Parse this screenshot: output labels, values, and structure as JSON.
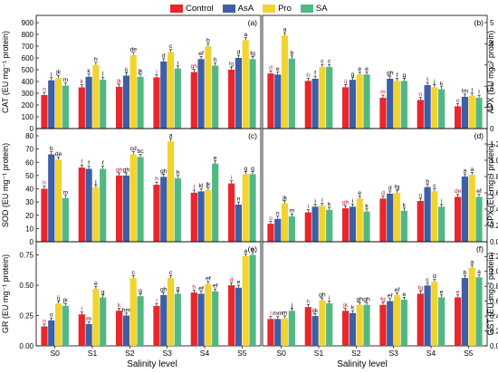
{
  "legend": [
    {
      "name": "Control",
      "color": "#e8262b"
    },
    {
      "name": "AsA",
      "color": "#3e5ea5"
    },
    {
      "name": "Pro",
      "color": "#f2d431"
    },
    {
      "name": "SA",
      "color": "#52b883"
    }
  ],
  "xlabel": "Salinity level",
  "chart_data": [
    {
      "type": "bar",
      "panel": "(a)",
      "ylabel": "CAT (EU mg⁻¹ protein)",
      "ylim": [
        0,
        900
      ],
      "yticks": [
        0,
        100,
        200,
        300,
        400,
        500,
        600,
        700,
        800,
        900
      ],
      "categories": [
        "S0",
        "S1",
        "S2",
        "S3",
        "S4",
        "S5"
      ],
      "series": [
        {
          "name": "Control",
          "values": [
            285,
            350,
            355,
            435,
            480,
            500
          ],
          "letters": [
            "n",
            "k",
            "jk",
            "i",
            "gh",
            "fg"
          ]
        },
        {
          "name": "AsA",
          "values": [
            410,
            440,
            450,
            570,
            590,
            600
          ],
          "letters": [
            "l",
            "k",
            "ij",
            "d",
            "ef",
            "d"
          ]
        },
        {
          "name": "Pro",
          "values": [
            430,
            540,
            625,
            650,
            700,
            750
          ],
          "letters": [
            "jk",
            "h",
            "de",
            "c",
            "b",
            "a"
          ]
        },
        {
          "name": "SA",
          "values": [
            365,
            415,
            440,
            510,
            535,
            590
          ],
          "letters": [
            "m",
            "l",
            "jk",
            "i",
            "h",
            "fg"
          ]
        }
      ]
    },
    {
      "type": "bar",
      "panel": "(b)",
      "ylabel": "APX (EU mg⁻¹ protein)",
      "ylim": [
        0,
        5
      ],
      "yticks": [
        0,
        1,
        2,
        3,
        4,
        5
      ],
      "categories": [
        "S0",
        "S1",
        "S2",
        "S3",
        "S4",
        "S5"
      ],
      "series": [
        {
          "name": "Control",
          "values": [
            2.6,
            2.25,
            1.95,
            1.45,
            1.35,
            1.05
          ],
          "letters": [
            "d",
            "h",
            "ij",
            "m",
            "n",
            "o"
          ]
        },
        {
          "name": "AsA",
          "values": [
            2.55,
            2.35,
            2.3,
            2.35,
            2.05,
            1.5
          ],
          "letters": [
            "e",
            "f",
            "g",
            "gh",
            "i",
            "lm"
          ]
        },
        {
          "name": "Pro",
          "values": [
            4.4,
            2.9,
            2.55,
            2.25,
            1.95,
            1.55
          ],
          "letters": [
            "a",
            "c",
            "e",
            "f",
            "j",
            "l"
          ]
        },
        {
          "name": "SA",
          "values": [
            3.3,
            2.9,
            2.55,
            2.25,
            1.85,
            1.45
          ],
          "letters": [
            "b",
            "c",
            "e",
            "g",
            "k",
            "l"
          ]
        }
      ]
    },
    {
      "type": "bar",
      "panel": "(c)",
      "ylabel": "SOD (EU mg⁻¹ protein)",
      "ylim": [
        0,
        80
      ],
      "yticks": [
        0,
        10,
        20,
        30,
        40,
        50,
        60,
        70,
        80
      ],
      "categories": [
        "S0",
        "S1",
        "S2",
        "S3",
        "S4",
        "S5"
      ],
      "series": [
        {
          "name": "Control",
          "values": [
            40,
            56,
            50,
            43,
            37,
            44
          ],
          "letters": [
            "h",
            "f",
            "gh",
            "h",
            "l",
            "i"
          ]
        },
        {
          "name": "AsA",
          "values": [
            66,
            55,
            50,
            49,
            38,
            28
          ],
          "letters": [
            "b",
            "f",
            "gh",
            "gh",
            "kl",
            "n"
          ]
        },
        {
          "name": "Pro",
          "values": [
            62,
            41,
            66,
            76,
            39,
            51
          ],
          "letters": [
            "de",
            "j",
            "cd",
            "a",
            "jk",
            "g"
          ]
        },
        {
          "name": "SA",
          "values": [
            33,
            55,
            64,
            48,
            59,
            51
          ],
          "letters": [
            "m",
            "f",
            "bc",
            "h",
            "e",
            "g"
          ]
        }
      ]
    },
    {
      "type": "bar",
      "panel": "(d)",
      "ylabel": "GPX (EU mg⁻¹ protein)",
      "ylim": [
        0,
        1.3
      ],
      "yticks": [
        0.0,
        0.2,
        0.4,
        0.6,
        0.8,
        1.0,
        1.2
      ],
      "categories": [
        "S0",
        "S1",
        "S2",
        "S3",
        "S4",
        "S5"
      ],
      "series": [
        {
          "name": "Control",
          "values": [
            0.22,
            0.36,
            0.41,
            0.53,
            0.5,
            0.55
          ],
          "letters": [
            "o",
            "l",
            "gh",
            "d",
            "g",
            "de"
          ]
        },
        {
          "name": "AsA",
          "values": [
            0.28,
            0.43,
            0.43,
            0.59,
            0.67,
            0.8
          ],
          "letters": [
            "n",
            "i",
            "i",
            "d",
            "b",
            "a"
          ]
        },
        {
          "name": "Pro",
          "values": [
            0.47,
            0.44,
            0.53,
            0.6,
            0.62,
            0.82
          ],
          "letters": [
            "jk",
            "i",
            "e",
            "fg",
            "c",
            "a"
          ]
        },
        {
          "name": "SA",
          "values": [
            0.31,
            0.39,
            0.37,
            0.38,
            0.43,
            0.55
          ],
          "letters": [
            "m",
            "k",
            "k",
            "k",
            "i",
            "ef"
          ]
        }
      ]
    },
    {
      "type": "bar",
      "panel": "(e)",
      "ylabel": "GR (EU mg⁻¹ protein)",
      "ylim": [
        0,
        0.8
      ],
      "yticks": [
        0.0,
        0.25,
        0.5,
        0.75
      ],
      "categories": [
        "S0",
        "S1",
        "S2",
        "S3",
        "S4",
        "S5"
      ],
      "series": [
        {
          "name": "Control",
          "values": [
            0.16,
            0.26,
            0.29,
            0.33,
            0.44,
            0.5
          ],
          "letters": [
            "n",
            "l",
            "k",
            "i",
            "h",
            "d"
          ]
        },
        {
          "name": "AsA",
          "values": [
            0.21,
            0.18,
            0.25,
            0.42,
            0.43,
            0.48
          ],
          "letters": [
            "o",
            "m",
            "hm",
            "gh",
            "ef",
            "e"
          ]
        },
        {
          "name": "Pro",
          "values": [
            0.35,
            0.47,
            0.56,
            0.56,
            0.51,
            0.74
          ],
          "letters": [
            "ij",
            "e",
            "c",
            "c",
            "ef",
            "a"
          ]
        },
        {
          "name": "SA",
          "values": [
            0.33,
            0.4,
            0.41,
            0.43,
            0.45,
            0.75
          ],
          "letters": [
            "jk",
            "g",
            "g",
            "g",
            "ef",
            "a"
          ]
        }
      ]
    },
    {
      "type": "bar",
      "panel": "(f)",
      "ylabel": "GST (EU mg⁻¹ protein)",
      "ylim": [
        0,
        1.3
      ],
      "yticks": [
        0.0,
        0.2,
        0.4,
        0.6,
        0.8,
        1.0,
        1.2
      ],
      "categories": [
        "S0",
        "S1",
        "S2",
        "S3",
        "S4",
        "S5"
      ],
      "series": [
        {
          "name": "Control",
          "values": [
            0.36,
            0.52,
            0.47,
            0.55,
            0.7,
            0.65
          ],
          "letters": [
            "l",
            "h",
            "jk",
            "fg",
            "fg",
            "e"
          ]
        },
        {
          "name": "AsA",
          "values": [
            0.36,
            0.4,
            0.44,
            0.6,
            0.81,
            0.91
          ],
          "letters": [
            "mm",
            "ijk",
            "k",
            "ef",
            "c",
            "b"
          ]
        },
        {
          "name": "Pro",
          "values": [
            0.37,
            0.61,
            0.55,
            0.68,
            0.86,
            1.05
          ],
          "letters": [
            "m",
            "gh",
            "gh",
            "ef",
            "d",
            "a"
          ]
        },
        {
          "name": "SA",
          "values": [
            0.47,
            0.57,
            0.55,
            0.62,
            0.65,
            0.92
          ],
          "letters": [
            "j",
            "i",
            "gh",
            "e",
            "e",
            "a"
          ]
        }
      ]
    }
  ]
}
